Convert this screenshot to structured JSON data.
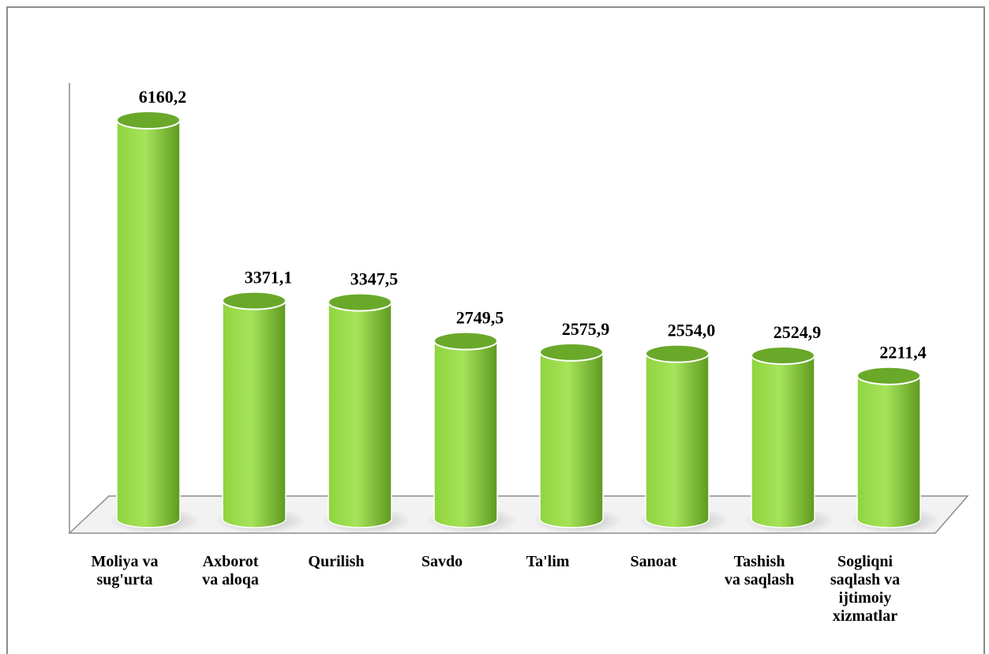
{
  "chart_data": {
    "type": "bar",
    "style": "3d-cylinder",
    "categories": [
      [
        "Moliya va",
        "sug'urta"
      ],
      [
        "Axborot",
        "va aloqa"
      ],
      [
        "Qurilish"
      ],
      [
        "Savdo"
      ],
      [
        "Ta'lim"
      ],
      [
        "Sanoat"
      ],
      [
        "Tashish",
        "va saqlash"
      ],
      [
        "Sogliqni",
        "saqlash va",
        "ijtimoiy",
        "xizmatlar"
      ]
    ],
    "values": [
      6160.2,
      3371.1,
      3347.5,
      2749.5,
      2575.9,
      2554.0,
      2524.9,
      2211.4
    ],
    "value_labels": [
      "6160,2",
      "3371,1",
      "3347,5",
      "2749,5",
      "2575,9",
      "2554,0",
      "2524,9",
      "2211,4"
    ],
    "title": "",
    "xlabel": "",
    "ylabel": "",
    "ylim": [
      0,
      6700
    ],
    "grid": false,
    "legend": "none",
    "colors": {
      "bar_light": "#a6e35a",
      "bar_mid": "#8fd43e",
      "bar_dark": "#5e9a1f",
      "bar_top": "#6aa82a",
      "floor": "#f2f2f2",
      "floor_shadow": "#b0b0b0",
      "axis": "#8c8c8c"
    }
  }
}
